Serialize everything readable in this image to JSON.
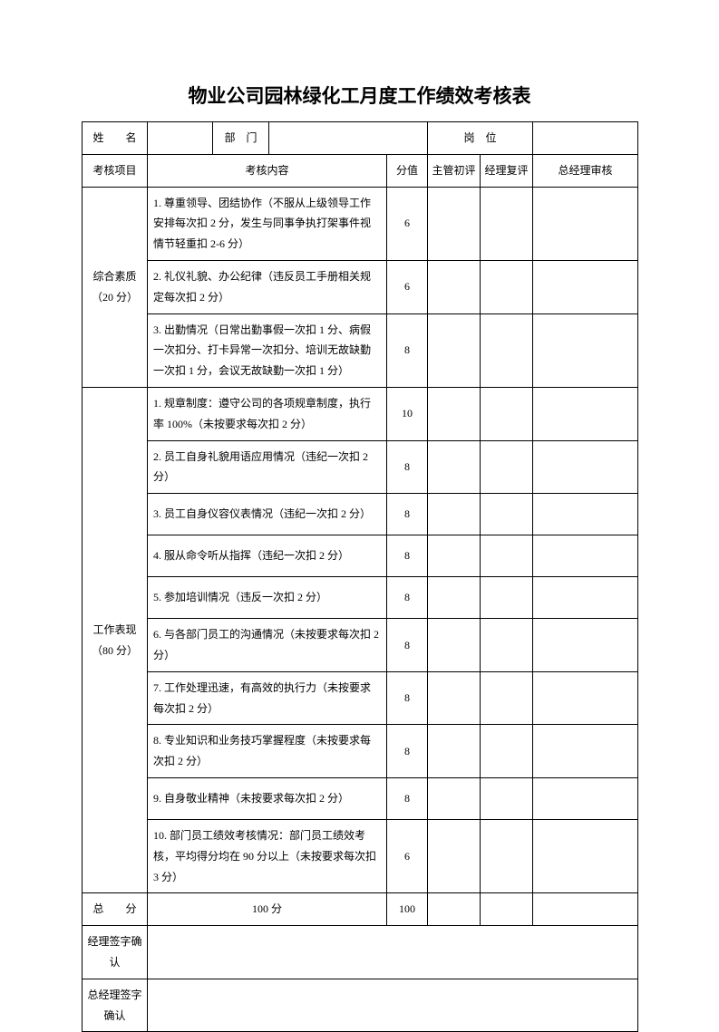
{
  "title": "物业公司园林绿化工月度工作绩效考核表",
  "header": {
    "name_label": "姓　　名",
    "dept_label": "部　门",
    "post_label": "岗　位"
  },
  "cols": {
    "item": "考核项目",
    "content": "考核内容",
    "score": "分值",
    "sup": "主管初评",
    "mgr": "经理复评",
    "gm": "总经理审核"
  },
  "section1": {
    "name": "综合素质（20 分）",
    "rows": [
      {
        "text": "1. 尊重领导、团结协作（不服从上级领导工作安排每次扣 2 分，发生与同事争执打架事件视情节轻重扣 2-6 分）",
        "score": "6"
      },
      {
        "text": "2. 礼仪礼貌、办公纪律（违反员工手册相关规定每次扣 2 分）",
        "score": "6"
      },
      {
        "text": "3. 出勤情况（日常出勤事假一次扣 1 分、病假一次扣分、打卡异常一次扣分、培训无故缺勤一次扣 1 分，会议无故缺勤一次扣 1 分）",
        "score": "8"
      }
    ]
  },
  "section2": {
    "name": "工作表现（80 分）",
    "rows": [
      {
        "text": "1. 规章制度：遵守公司的各项规章制度，执行率 100%（未按要求每次扣 2 分）",
        "score": "10"
      },
      {
        "text": "2. 员工自身礼貌用语应用情况（违纪一次扣 2 分）",
        "score": "8"
      },
      {
        "text": "3. 员工自身仪容仪表情况（违纪一次扣 2 分）",
        "score": "8"
      },
      {
        "text": "4. 服从命令听从指挥（违纪一次扣 2 分）",
        "score": "8"
      },
      {
        "text": "5. 参加培训情况（违反一次扣 2 分）",
        "score": "8"
      },
      {
        "text": "6. 与各部门员工的沟通情况（未按要求每次扣 2 分）",
        "score": "8"
      },
      {
        "text": "7. 工作处理迅速，有高效的执行力（未按要求每次扣 2 分）",
        "score": "8"
      },
      {
        "text": "8. 专业知识和业务技巧掌握程度（未按要求每次扣 2 分）",
        "score": "8"
      },
      {
        "text": "9. 自身敬业精神（未按要求每次扣 2 分）",
        "score": "8"
      },
      {
        "text": "10. 部门员工绩效考核情况：部门员工绩效考核，平均得分均在 90 分以上（未按要求每次扣 3 分）",
        "score": "6"
      }
    ]
  },
  "total": {
    "label": "总　　分",
    "text": "100 分",
    "score": "100"
  },
  "sign1": "经理签字确认",
  "sign2": "总经理签字确认"
}
